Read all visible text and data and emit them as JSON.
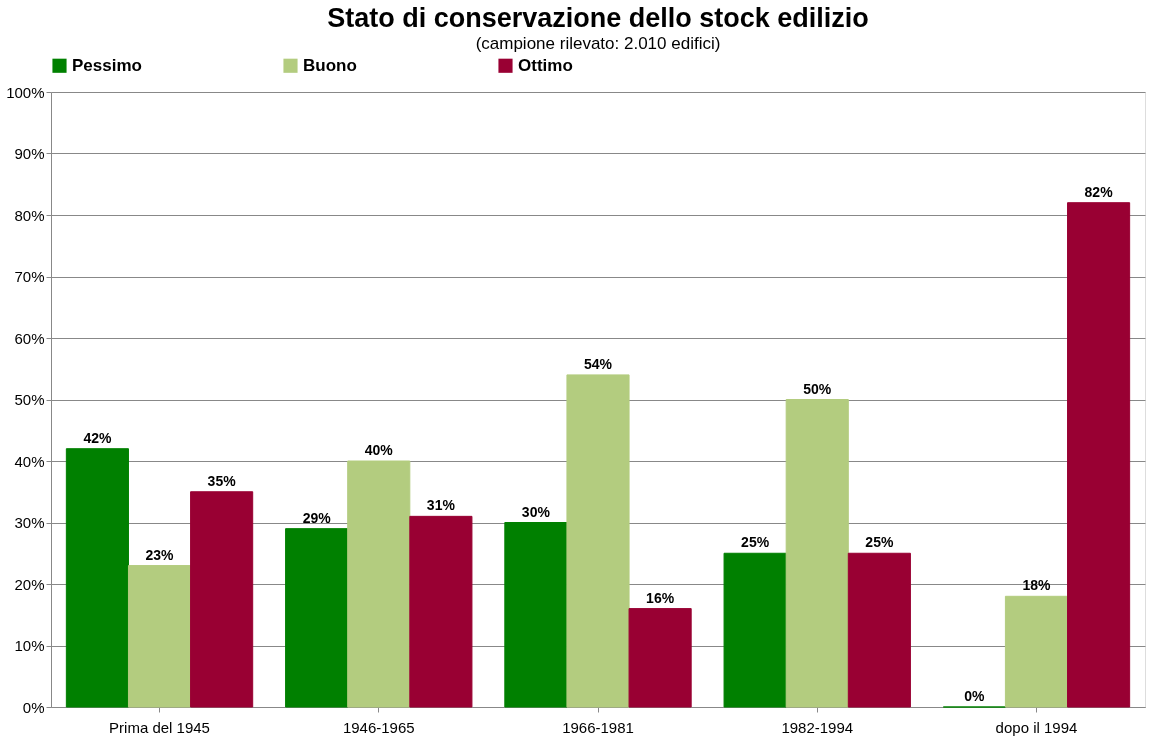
{
  "chart_data": {
    "type": "bar",
    "title": "Stato di conservazione dello stock edilizio",
    "subtitle": "(campione rilevato: 2.010 edifici)",
    "categories": [
      "Prima del 1945",
      "1946-1965",
      "1966-1981",
      "1982-1994",
      "dopo il 1994"
    ],
    "series": [
      {
        "name": "Pessimo",
        "color": "#008000",
        "values": [
          42,
          29,
          30,
          25,
          0
        ],
        "value_labels": [
          "42%",
          "29%",
          "30%",
          "25%",
          "0%"
        ]
      },
      {
        "name": "Buono",
        "color": "#b3cc7f",
        "values": [
          23,
          40,
          54,
          50,
          18
        ],
        "value_labels": [
          "23%",
          "40%",
          "54%",
          "50%",
          "18%"
        ]
      },
      {
        "name": "Ottimo",
        "color": "#990033",
        "values": [
          35,
          31,
          16,
          25,
          82
        ],
        "value_labels": [
          "35%",
          "31%",
          "16%",
          "25%",
          "82%"
        ]
      }
    ],
    "ylim": [
      0,
      100
    ],
    "yticks": [
      {
        "value": 0,
        "label": "0%"
      },
      {
        "value": 10,
        "label": "10%"
      },
      {
        "value": 20,
        "label": "20%"
      },
      {
        "value": 30,
        "label": "30%"
      },
      {
        "value": 40,
        "label": "40%"
      },
      {
        "value": 50,
        "label": "50%"
      },
      {
        "value": 60,
        "label": "60%"
      },
      {
        "value": 70,
        "label": "70%"
      },
      {
        "value": 80,
        "label": "80%"
      },
      {
        "value": 90,
        "label": "90%"
      },
      {
        "value": 100,
        "label": "100%"
      }
    ],
    "grid": "y",
    "legend": "top"
  }
}
